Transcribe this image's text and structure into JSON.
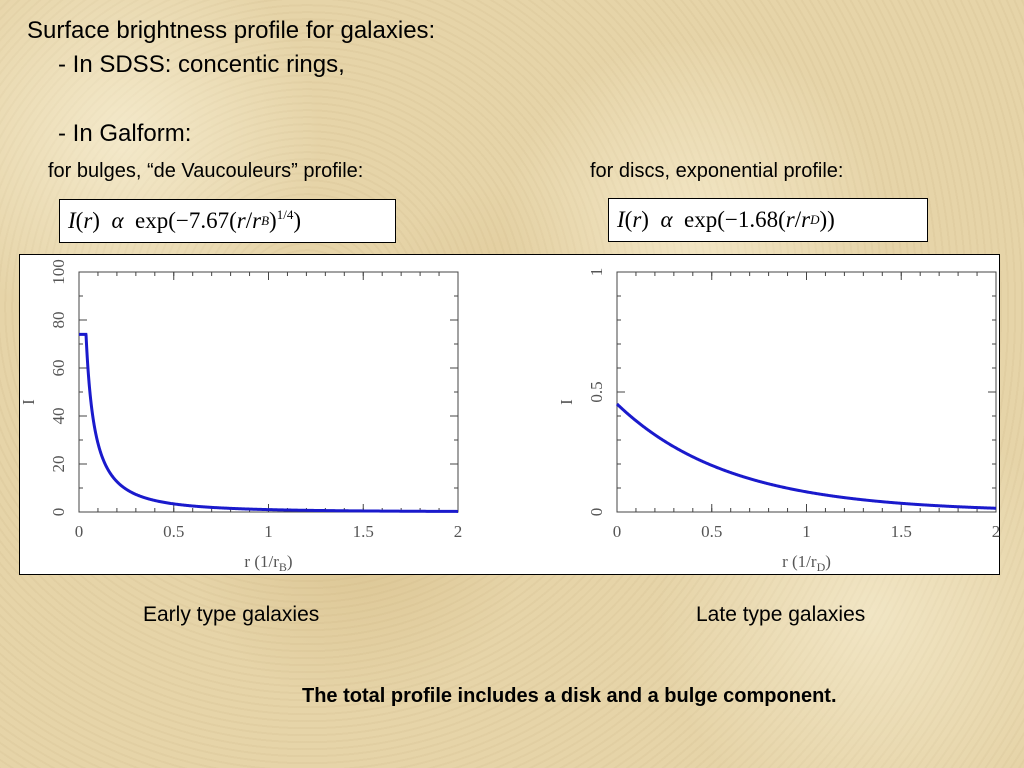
{
  "heading": {
    "line1": "Surface brightness profile for galaxies:",
    "line2": "- In SDSS: concentic rings,",
    "line3": "- In Galform:"
  },
  "left_panel": {
    "label": "for bulges, “de Vaucouleurs” profile:",
    "formula": {
      "lhs": "I",
      "arg": "r",
      "prop": "α",
      "body": "exp(−7.67(",
      "r": "r",
      "slash": " / ",
      "rsub": "r",
      "sub": "B",
      "close1": ")",
      "exp": "1/4",
      "close2": ")"
    },
    "caption": "Early type galaxies"
  },
  "right_panel": {
    "label": "for discs, exponential profile:",
    "formula": {
      "lhs": "I",
      "arg": "r",
      "prop": "α",
      "body": "exp(−1.68(",
      "r": "r",
      "slash": " / ",
      "rsub": "r",
      "sub": "D",
      "close": "))"
    },
    "caption": "Late type galaxies"
  },
  "bottom_note": "The total profile includes a disk and a bulge component.",
  "chart_data": [
    {
      "type": "line",
      "title": "",
      "xlabel": "r (1/r",
      "xlabel_sub": "B",
      "xlabel_close": ")",
      "ylabel": "I",
      "xlim": [
        0,
        2
      ],
      "ylim": [
        0,
        100
      ],
      "xticks": [
        0,
        0.5,
        1,
        1.5,
        2
      ],
      "xtick_labels": [
        "0",
        "0.5",
        "1",
        "1.5",
        "2"
      ],
      "yticks": [
        0,
        20,
        40,
        60,
        80,
        100
      ],
      "ytick_labels": [
        "0",
        "20",
        "40",
        "60",
        "80",
        "100"
      ],
      "grid": false,
      "line_color": "#1a1acc",
      "function": "de_vaucouleurs",
      "amplitude": 2140,
      "coefficient": 7.67
    },
    {
      "type": "line",
      "title": "",
      "xlabel": "r (1/r",
      "xlabel_sub": "D",
      "xlabel_close": ")",
      "ylabel": "I",
      "xlim": [
        0,
        2
      ],
      "ylim": [
        0,
        1
      ],
      "xticks": [
        0,
        0.5,
        1,
        1.5,
        2
      ],
      "xtick_labels": [
        "0",
        "0.5",
        "1",
        "1.5",
        "2"
      ],
      "yticks": [
        0,
        0.5,
        1
      ],
      "ytick_labels": [
        "0",
        "0.5",
        "1"
      ],
      "grid": false,
      "line_color": "#1a1acc",
      "function": "exponential",
      "amplitude": 0.45,
      "coefficient": 1.68
    }
  ]
}
